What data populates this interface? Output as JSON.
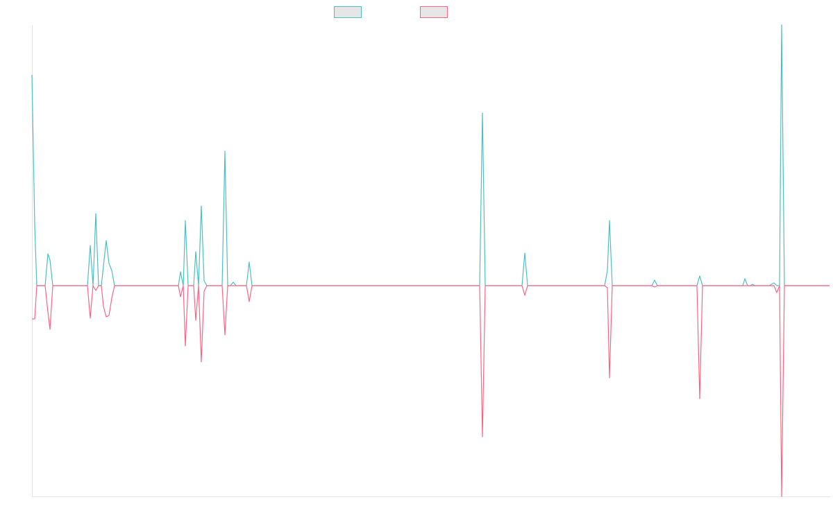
{
  "chart_data": {
    "type": "line",
    "xlim": [
      0,
      1150
    ],
    "ylim": [
      -304,
      376
    ],
    "legend": "top",
    "series": [
      {
        "color": "#4bc0c0",
        "x": [
          0,
          4,
          7,
          19,
          23,
          26,
          30,
          34,
          80,
          84,
          88,
          92,
          96,
          100,
          107,
          111,
          115,
          119,
          211,
          214,
          218,
          221,
          225,
          233,
          236,
          240,
          244,
          248,
          252,
          274,
          278,
          282,
          286,
          290,
          294,
          309,
          313,
          317,
          645,
          649,
          653,
          706,
          710,
          714,
          825,
          829,
          832,
          836,
          893,
          897,
          901,
          958,
          962,
          966,
          1024,
          1027,
          1031,
          1035,
          1038,
          1042,
          1062,
          1069,
          1073,
          1077,
          1080,
          1084,
          1149
        ],
        "values": [
          304,
          87,
          0,
          0,
          46,
          37,
          0,
          0,
          0,
          58,
          0,
          104,
          0,
          0,
          65,
          32,
          22,
          0,
          0,
          20,
          0,
          94,
          0,
          0,
          49,
          0,
          115,
          7,
          0,
          0,
          194,
          0,
          0,
          5,
          0,
          0,
          34,
          0,
          0,
          249,
          0,
          0,
          47,
          0,
          0,
          22,
          94,
          0,
          0,
          8,
          0,
          0,
          14,
          0,
          0,
          10,
          0,
          0,
          2,
          0,
          0,
          4,
          0,
          0,
          376,
          0,
          0
        ]
      },
      {
        "color": "#ff6384",
        "x": [
          0,
          4,
          7,
          19,
          23,
          26,
          30,
          80,
          84,
          88,
          92,
          96,
          100,
          103,
          107,
          111,
          115,
          119,
          211,
          214,
          218,
          221,
          225,
          233,
          236,
          240,
          244,
          248,
          252,
          274,
          278,
          282,
          309,
          313,
          317,
          645,
          649,
          653,
          706,
          710,
          714,
          825,
          829,
          832,
          836,
          893,
          897,
          901,
          958,
          962,
          966,
          1069,
          1073,
          1077,
          1080,
          1084,
          1149
        ],
        "values": [
          -48,
          -48,
          0,
          0,
          -38,
          -63,
          0,
          0,
          -47,
          0,
          -7,
          0,
          0,
          -30,
          -45,
          -43,
          -18,
          0,
          0,
          -16,
          0,
          -87,
          0,
          0,
          -50,
          0,
          -110,
          -8,
          0,
          0,
          -71,
          0,
          0,
          -23,
          0,
          0,
          -218,
          0,
          0,
          -14,
          0,
          0,
          -3,
          -133,
          0,
          0,
          -2,
          0,
          0,
          -163,
          0,
          0,
          -10,
          0,
          -304,
          0,
          0
        ]
      }
    ]
  }
}
